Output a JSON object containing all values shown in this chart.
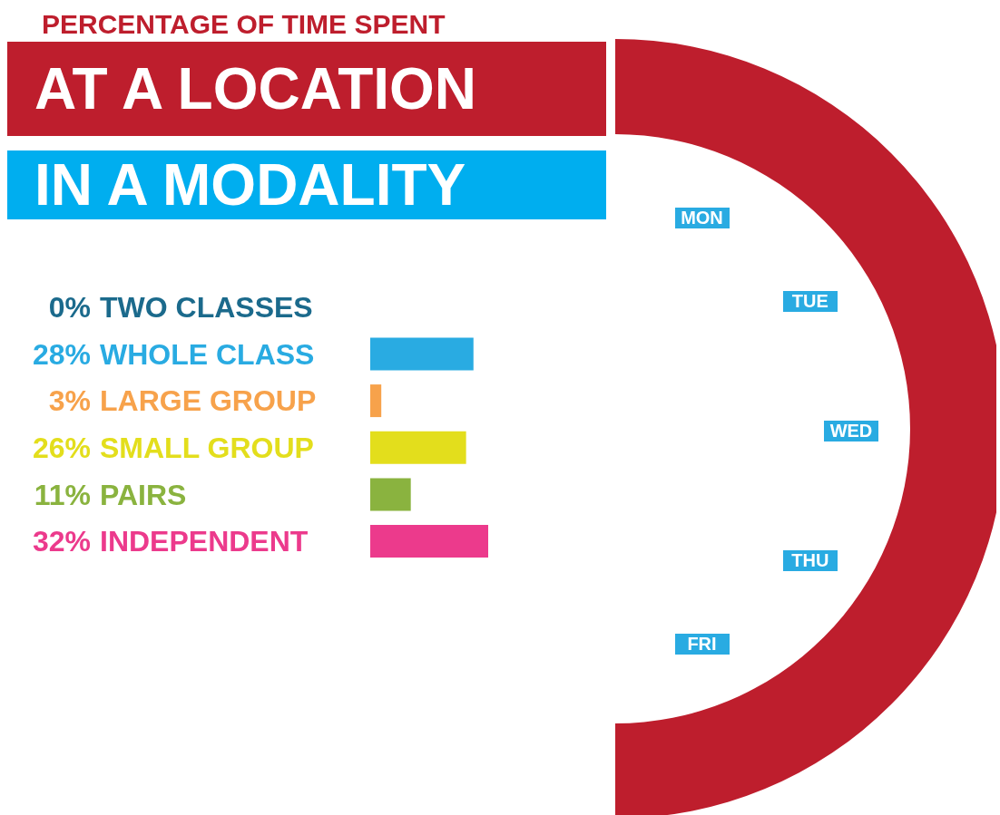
{
  "chart_data": {
    "type": "bar",
    "orientation": "horizontal",
    "title": "PERCENTAGE OF TIME SPENT",
    "subtitle": "AT A LOCATION",
    "annotations": [
      "IN A MODALITY",
      "MON",
      "TUE",
      "WED",
      "THU",
      "FRI"
    ],
    "categories": [
      "TWO CLASSES",
      "WHOLE CLASS",
      "LARGE GROUP",
      "SMALL GROUP",
      "PAIRS",
      "INDEPENDENT"
    ],
    "values": [
      0,
      28,
      3,
      26,
      11,
      32
    ],
    "value_labels": [
      "0%",
      "28%",
      "3%",
      "26%",
      "11%",
      "32%"
    ],
    "colors": [
      "#1b6a8c",
      "#29abe2",
      "#f7a24b",
      "#e3de1c",
      "#8ab33f",
      "#ec3a8c"
    ],
    "legend": false
  }
}
